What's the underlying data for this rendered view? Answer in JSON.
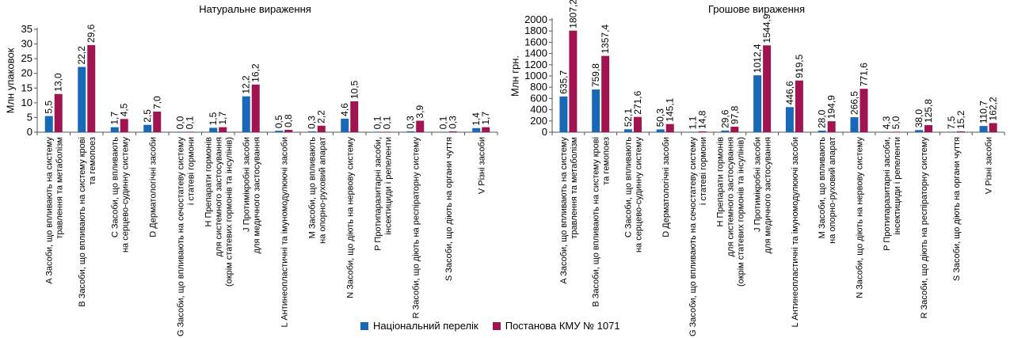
{
  "legend": {
    "series1": "Національний перелік",
    "series2": "Постанова КМУ № 1071"
  },
  "colors": {
    "series1": "#1769b8",
    "series2": "#a0144f"
  },
  "chart_data": [
    {
      "type": "bar",
      "title": "Натуральне вираження",
      "ylabel": "Млн упаковок",
      "ylim": [
        0,
        35
      ],
      "yticks": [
        0,
        5,
        10,
        15,
        20,
        25,
        30,
        35
      ],
      "categories": [
        [
          "A Засоби, що впливають на систему",
          "травлення та метаболізм"
        ],
        [
          "B Засоби, що впливають на систему крові",
          "та гемопоез"
        ],
        [
          "C Засоби, що впливають",
          "на серцево-судинну систему"
        ],
        [
          "D Дерматологічні засоби"
        ],
        [
          "G Засоби, що впливають на сечостатеву систему",
          "і статеві гормони"
        ],
        [
          "H Препарати гормонів",
          "для системного застосування",
          "(окрім статевих гормонів та інсулінів)"
        ],
        [
          "J Протимікробні засоби",
          "для медичного застосування"
        ],
        [
          "L Антинеопластичні та імуномодулюючі засоби"
        ],
        [
          "M Засоби, що впливають",
          "на опорно-руховий апарат"
        ],
        [
          "N Засоби, що діють на нервову систему"
        ],
        [
          "P Протипаразитарні засоби,",
          "інсектициди і репеленти"
        ],
        [
          "R Засоби, що діють на респіраторну систему"
        ],
        [
          "S Засоби, що діють на органи чуття"
        ],
        [
          "V Різні засоби"
        ]
      ],
      "series": [
        {
          "name": "Національний перелік",
          "values": [
            5.5,
            22.2,
            1.7,
            2.5,
            0.0,
            1.5,
            12.2,
            0.5,
            0.3,
            4.6,
            0.1,
            0.3,
            0.1,
            1.4
          ],
          "labels": [
            "5,5",
            "22,2",
            "1,7",
            "2,5",
            "0,0",
            "1,5",
            "12,2",
            "0,5",
            "0,3",
            "4,6",
            "0,1",
            "0,3",
            "0,1",
            "1,4"
          ]
        },
        {
          "name": "Постанова КМУ № 1071",
          "values": [
            13.0,
            29.6,
            4.5,
            7.0,
            0.1,
            1.7,
            16.2,
            0.8,
            2.2,
            10.5,
            0.1,
            3.9,
            0.3,
            1.7
          ],
          "labels": [
            "13,0",
            "29,6",
            "4,5",
            "7,0",
            "0,1",
            "1,7",
            "16,2",
            "0,8",
            "2,2",
            "10,5",
            "0,1",
            "3,9",
            "0,3",
            "1,7"
          ]
        }
      ]
    },
    {
      "type": "bar",
      "title": "Грошове вираження",
      "ylabel": "Млн грн.",
      "ylim": [
        0,
        2000
      ],
      "yticks": [
        0,
        200,
        400,
        600,
        800,
        1000,
        1200,
        1400,
        1600,
        1800,
        2000
      ],
      "categories": [
        [
          "A Засоби, що впливають на систему",
          "травлення та метаболізм"
        ],
        [
          "B Засоби, що впливають на систему крові",
          "та гемопоез"
        ],
        [
          "C Засоби, що впливають",
          "на серцево-судинну систему"
        ],
        [
          "D Дерматологічні засоби"
        ],
        [
          "G Засоби, що впливають на сечостатеву систему",
          "і статеві гормони"
        ],
        [
          "H Препарати гормонів",
          "для системного застосування",
          "(окрім статевих гормонів та інсулінів)"
        ],
        [
          "J Протимікробні засоби",
          "для медичного застосування"
        ],
        [
          "L Антинеопластичні та імуномодулюючі засоби"
        ],
        [
          "M Засоби, що впливають",
          "на опорно-руховий апарат"
        ],
        [
          "N Засоби, що діють на нервову систему"
        ],
        [
          "P Протипаразитарні засоби,",
          "інсектициди і репеленти"
        ],
        [
          "R Засоби, що діють на респіраторну систему"
        ],
        [
          "S Засоби, що діють на органи чуття"
        ],
        [
          "V Різні засоби"
        ]
      ],
      "series": [
        {
          "name": "Національний перелік",
          "values": [
            635.7,
            759.8,
            52.1,
            50.3,
            1.1,
            29.6,
            1012.4,
            446.6,
            28.0,
            266.5,
            4.3,
            38.0,
            7.5,
            110.7
          ],
          "labels": [
            "635,7",
            "759,8",
            "52,1",
            "50,3",
            "1,1",
            "29,6",
            "1012,4",
            "446,6",
            "28,0",
            "266,5",
            "4,3",
            "38,0",
            "7,5",
            "110,7"
          ]
        },
        {
          "name": "Постанова КМУ № 1071",
          "values": [
            1807.2,
            1357.4,
            271.6,
            145.1,
            14.8,
            97.8,
            1544.9,
            919.5,
            194.9,
            771.6,
            5.0,
            125.8,
            15.2,
            162.2
          ],
          "labels": [
            "1807,2",
            "1357,4",
            "271,6",
            "145,1",
            "14,8",
            "97,8",
            "1544,9",
            "919,5",
            "194,9",
            "771,6",
            "5,0",
            "125,8",
            "15,2",
            "162,2"
          ]
        }
      ]
    }
  ]
}
